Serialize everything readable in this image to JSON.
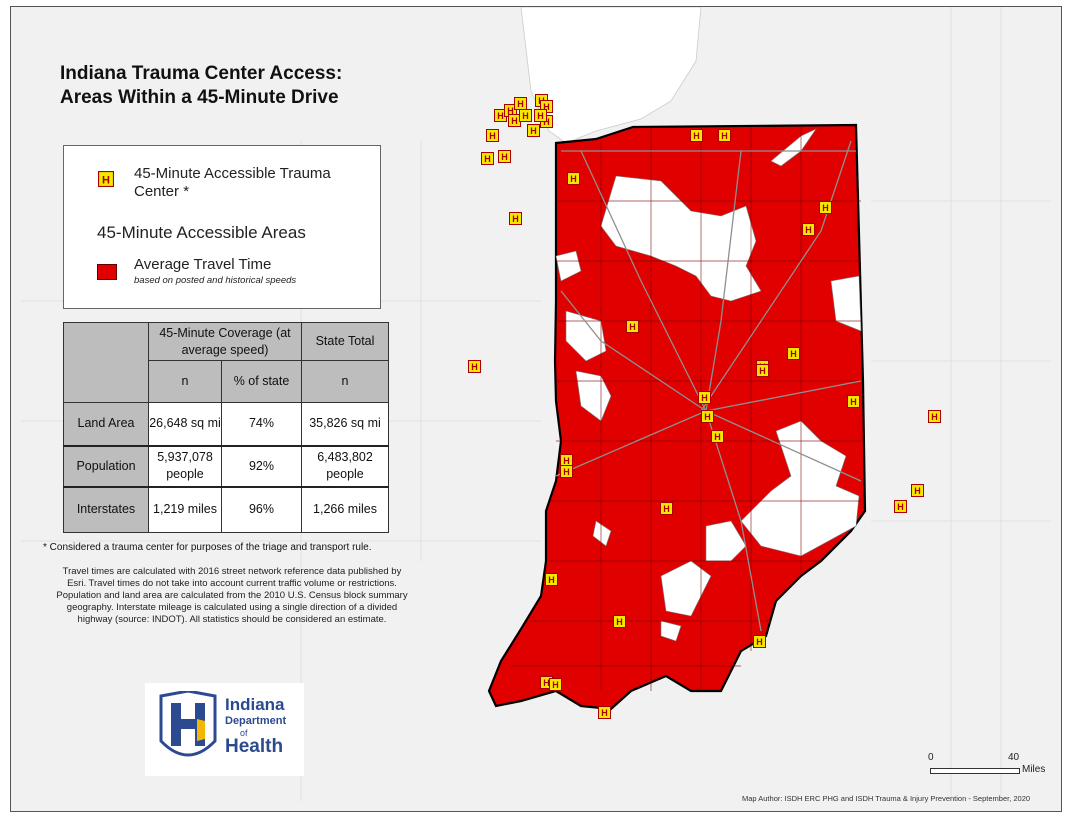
{
  "title": {
    "line1": "Indiana Trauma Center Access:",
    "line2": "Areas Within a 45-Minute Drive"
  },
  "legend": {
    "trauma_label": "45-Minute Accessible Trauma Center *",
    "areas_label": "45-Minute Accessible Areas",
    "travel_label": "Average Travel Time",
    "travel_note": "based on posted and historical speeds",
    "hospital_symbol": "H"
  },
  "stats_table": {
    "col_coverage": "45-Minute Coverage (at average speed)",
    "col_state": "State Total",
    "sub_n": "n",
    "sub_pct": "% of state",
    "sub_n2": "n",
    "rows": [
      {
        "label": "Land Area",
        "n": "26,648 sq mi",
        "pct": "74%",
        "total": "35,826 sq mi"
      },
      {
        "label": "Population",
        "n": "5,937,078 people",
        "pct": "92%",
        "total": "6,483,802 people"
      },
      {
        "label": "Interstates",
        "n": "1,219 miles",
        "pct": "96%",
        "total": "1,266 miles"
      }
    ]
  },
  "footnote": "* Considered a trauma center for purposes of the triage and transport rule.",
  "methods": "Travel times are calculated with 2016 street network reference data published by Esri. Travel times do not take into account current traffic volume or restrictions. Population and land area are calculated from the 2010 U.S. Census block summary geography. Interstate mileage is calculated using a single direction of a divided highway (source: INDOT). All statistics should be considered an estimate.",
  "logo": {
    "line1": "Indiana",
    "line2": "Department",
    "line3": "of",
    "line4": "Health"
  },
  "scale": {
    "zero": "0",
    "forty": "40",
    "unit": "Miles"
  },
  "credit": "Map Author: ISDH ERC PHG and ISDH Trauma & Injury Prevention - September, 2020",
  "colors": {
    "accessible": "#e00000",
    "not_accessible": "#ffffff",
    "background": "#f1f1f1",
    "lake": "#ffffff",
    "hospital": "#f5e800"
  }
}
